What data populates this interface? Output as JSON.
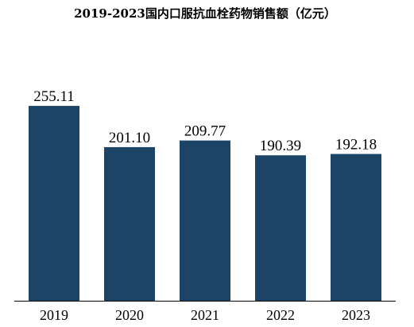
{
  "chart_data": {
    "type": "bar",
    "title": "2019-2023国内口服抗血栓药物销售额（亿元）",
    "categories": [
      "2019",
      "2020",
      "2021",
      "2022",
      "2023"
    ],
    "values": [
      255.11,
      201.1,
      209.77,
      190.39,
      192.18
    ],
    "value_labels": [
      "255.11",
      "201.10",
      "209.77",
      "190.39",
      "192.18"
    ],
    "xlabel": "",
    "ylabel": "",
    "ylim": [
      0,
      300
    ],
    "grid": false,
    "legend": "none",
    "bar_color": "#1b4466",
    "axis_color": "#000000"
  }
}
